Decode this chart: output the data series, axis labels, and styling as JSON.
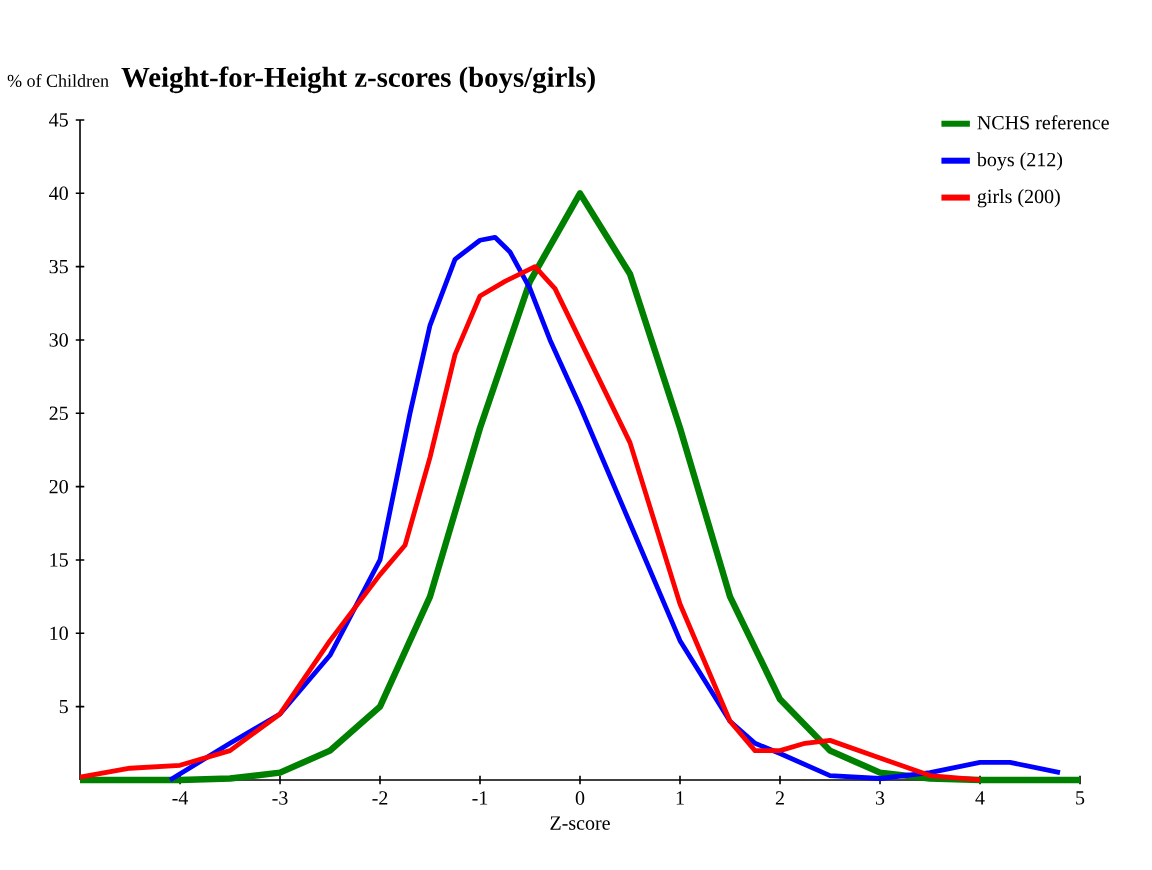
{
  "chart_data": {
    "type": "line",
    "title": "Weight-for-Height z-scores (boys/girls)",
    "ylabel": "% of Children",
    "xlabel": "Z-score",
    "xlim": [
      -5,
      5
    ],
    "xticks": [
      -4,
      -3,
      -2,
      -1,
      0,
      1,
      2,
      3,
      4,
      5
    ],
    "ylim": [
      0,
      45
    ],
    "yticks": [
      5,
      10,
      15,
      20,
      25,
      30,
      35,
      40,
      45
    ],
    "grid": false,
    "legend": "top right",
    "marker": "none",
    "line_style": "solid",
    "series": [
      {
        "name": "NCHS reference",
        "color": "#008000",
        "x": [
          -5,
          -4,
          -3.5,
          -3,
          -2.5,
          -2,
          -1.5,
          -1,
          -0.5,
          0,
          0.5,
          1,
          1.5,
          2,
          2.5,
          3,
          3.5,
          4,
          5
        ],
        "values": [
          0,
          0,
          0.1,
          0.5,
          2,
          5,
          12.5,
          24,
          34,
          40,
          34.5,
          24,
          12.5,
          5.5,
          2,
          0.5,
          0.1,
          0,
          0
        ]
      },
      {
        "name": "boys (212)",
        "color": "#0000ff",
        "x": [
          -4.1,
          -3.5,
          -3,
          -2.5,
          -2,
          -1.7,
          -1.5,
          -1.25,
          -1,
          -0.85,
          -0.7,
          -0.5,
          -0.3,
          0,
          0.5,
          1,
          1.5,
          1.75,
          2,
          2.5,
          3,
          3.5,
          4,
          4.3,
          4.8
        ],
        "values": [
          0,
          2.5,
          4.5,
          8.5,
          15,
          25,
          31,
          35.5,
          36.8,
          37,
          36,
          33.5,
          30,
          25.5,
          17.5,
          9.5,
          4,
          2.5,
          1.8,
          0.3,
          0.1,
          0.5,
          1.2,
          1.2,
          0.5
        ]
      },
      {
        "name": "girls (200)",
        "color": "#ff0000",
        "x": [
          -5,
          -4.5,
          -4,
          -3.5,
          -3,
          -2.5,
          -2,
          -1.75,
          -1.5,
          -1.25,
          -1,
          -0.75,
          -0.45,
          -0.25,
          0,
          0.5,
          1,
          1.5,
          1.75,
          2,
          2.25,
          2.5,
          3,
          3.5,
          4
        ],
        "values": [
          0.2,
          0.8,
          1,
          2,
          4.5,
          9.5,
          14,
          16,
          22,
          29,
          33,
          34,
          35,
          33.5,
          30,
          23,
          12,
          4,
          2,
          2,
          2.5,
          2.7,
          1.5,
          0.3,
          0
        ]
      }
    ]
  }
}
